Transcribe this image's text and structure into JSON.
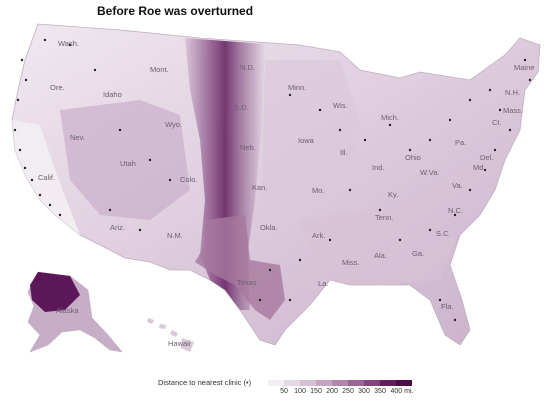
{
  "title": "Before Roe was overturned",
  "labels": {
    "wash": "Wash.",
    "ore": "Ore.",
    "idaho": "Idaho",
    "mont": "Mont.",
    "wyo": "Wyo.",
    "nd": "N.D.",
    "minn": "Minn.",
    "wis": "Wis.",
    "sd": "S.D.",
    "neb": "Neb.",
    "iowa": "Iowa",
    "ill": "Ill.",
    "mich": "Mich.",
    "ind": "Ind.",
    "ohio": "Ohio",
    "pa": "Pa.",
    "nh": "N.H.",
    "maine": "Maine",
    "mass": "Mass.",
    "ct": "Ct.",
    "del": "Del.",
    "md": "Md.",
    "wva": "W.Va.",
    "va": "Va.",
    "ky": "Ky.",
    "nc": "N.C.",
    "tenn": "Tenn.",
    "sc": "S.C.",
    "ga": "Ga.",
    "ala": "Ala.",
    "miss": "Miss.",
    "ark": "Ark.",
    "la": "La.",
    "fla": "Fla.",
    "mo": "Mo.",
    "kan": "Kan.",
    "okla": "Okla.",
    "texas": "Texas",
    "nm": "N.M.",
    "colo": "Colo.",
    "ariz": "Ariz.",
    "utah": "Utah",
    "nev": "Nev.",
    "calif": "Calif.",
    "alaska": "Alaska",
    "hawaii": "Hawaii"
  },
  "legend": {
    "title": "Distance to nearest clinic (•)",
    "ticks": [
      "50",
      "100",
      "150",
      "200",
      "250",
      "300",
      "350",
      "400 mi."
    ],
    "colors": [
      "#f3eef3",
      "#e6d9e6",
      "#d6c0d6",
      "#c4a3c3",
      "#b086ad",
      "#996597",
      "#80467d",
      "#5e1f5a",
      "#4a0f45"
    ]
  }
}
